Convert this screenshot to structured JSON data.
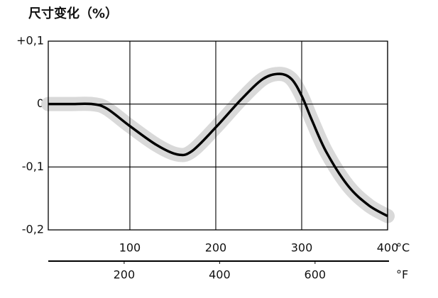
{
  "chart_data": {
    "type": "line",
    "title": "尺寸变化（%）",
    "x_unit": "°C",
    "x2_unit": "°F",
    "x": [
      5,
      30,
      56,
      73,
      100,
      131,
      155,
      172,
      200,
      230,
      255,
      274,
      288,
      300,
      312,
      329,
      354,
      378,
      400
    ],
    "series": [
      {
        "color": "#000000",
        "band_color": "#d9d9d9",
        "values": [
          0,
          0,
          0,
          -0.007,
          -0.035,
          -0.065,
          -0.08,
          -0.075,
          -0.037,
          0.008,
          0.04,
          0.048,
          0.04,
          0.013,
          -0.026,
          -0.077,
          -0.13,
          -0.161,
          -0.178
        ]
      }
    ],
    "xlim": [
      5,
      400
    ],
    "xticks": [
      100,
      200,
      300,
      400
    ],
    "x2lim": [
      41,
      752
    ],
    "x2ticks": [
      200,
      400,
      600
    ],
    "ylim": [
      -0.2,
      0.1
    ],
    "yticks": [
      {
        "value": 0.1,
        "label": "+0,1"
      },
      0,
      {
        "value": -0.1,
        "label": "-0,1"
      },
      {
        "value": -0.2,
        "label": "-0,2"
      }
    ],
    "grid": true
  }
}
